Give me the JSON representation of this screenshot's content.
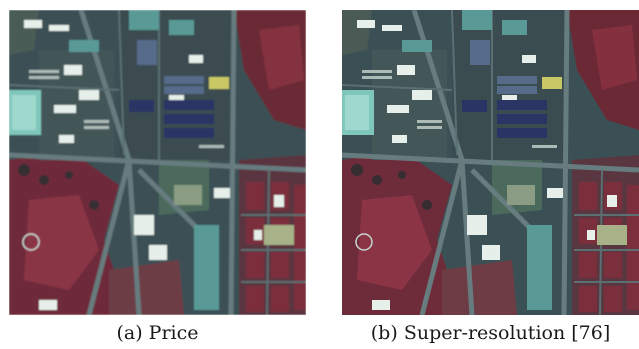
{
  "figure": {
    "panels": [
      {
        "label": "(a)",
        "name": "Price"
      },
      {
        "label": "(b)",
        "name": "Super-resolution [76]"
      }
    ]
  },
  "colors": {
    "vegetation": "#7a2f3c",
    "urban": "#3d5558",
    "road": "#5f7478",
    "roof_white": "#e6efe9",
    "roof_cyan": "#7fc6bb",
    "roof_blue": "#2b3565",
    "roof_yellow": "#c9c865",
    "soil": "#a7b289"
  }
}
